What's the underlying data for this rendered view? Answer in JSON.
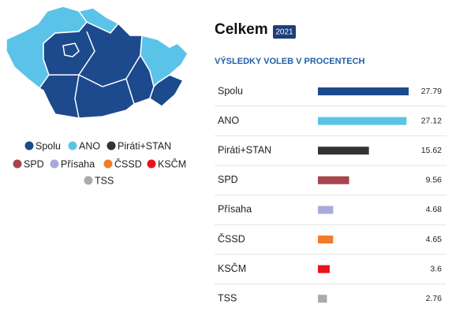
{
  "chart_data": {
    "type": "bar",
    "title": "Celkem",
    "badge": "2021",
    "subtitle": "VÝSLEDKY VOLEB V PROCENTECH",
    "categories": [
      "Spolu",
      "ANO",
      "Piráti+STAN",
      "SPD",
      "Přísaha",
      "ČSSD",
      "KSČM",
      "TSS"
    ],
    "values": [
      27.79,
      27.12,
      15.62,
      9.56,
      4.68,
      4.65,
      3.6,
      2.76
    ],
    "colors": [
      "#1c4a8c",
      "#5bc3e8",
      "#333333",
      "#a8464d",
      "#a9a9dc",
      "#f07c2a",
      "#e8131b",
      "#aaaaaa"
    ]
  }
}
